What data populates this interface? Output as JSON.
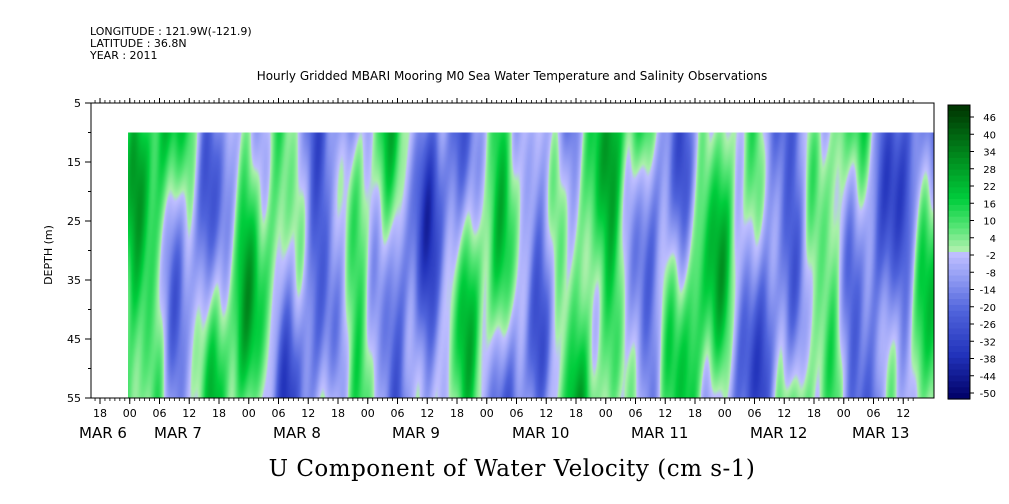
{
  "meta": {
    "longitude": "LONGITUDE : 121.9W(-121.9)",
    "latitude": "LATITUDE : 36.8N",
    "year": "YEAR : 2011"
  },
  "chart_data": {
    "type": "heatmap",
    "title": "Hourly Gridded MBARI Mooring M0 Sea Water Temperature and Salinity Observations",
    "xlabel": "U Component of Water Velocity (cm s-1)",
    "ylabel": "DEPTH (m)",
    "y_range": [
      5,
      55
    ],
    "y_inverted": true,
    "y_ticks": [
      "5",
      "15",
      "25",
      "35",
      "45",
      "55"
    ],
    "data_depth_range": [
      10,
      55
    ],
    "x_hour_ticks": [
      "18",
      "00",
      "06",
      "12",
      "18",
      "00",
      "06",
      "12",
      "18",
      "00",
      "06",
      "12",
      "18",
      "00",
      "06",
      "12",
      "18",
      "00",
      "06",
      "12",
      "18",
      "00",
      "06",
      "12",
      "18",
      "00",
      "06",
      "12"
    ],
    "x_date_labels": [
      "MAR  6",
      "MAR  7",
      "MAR  8",
      "MAR  9",
      "MAR 10",
      "MAR 11",
      "MAR 12",
      "MAR 13"
    ],
    "colorbar": {
      "ticks": [
        "46",
        "40",
        "34",
        "28",
        "22",
        "16",
        "10",
        "4",
        "-2",
        "-8",
        "-14",
        "-20",
        "-26",
        "-32",
        "-38",
        "-44",
        "-50"
      ],
      "range": [
        -50,
        50
      ],
      "colors": {
        "strong_positive": "#003300",
        "mid_positive": "#00cc33",
        "weak_positive": "#99ee99",
        "weak_negative": "#b0b0ff",
        "mid_negative": "#5566dd",
        "strong_negative": "#000066"
      }
    }
  }
}
